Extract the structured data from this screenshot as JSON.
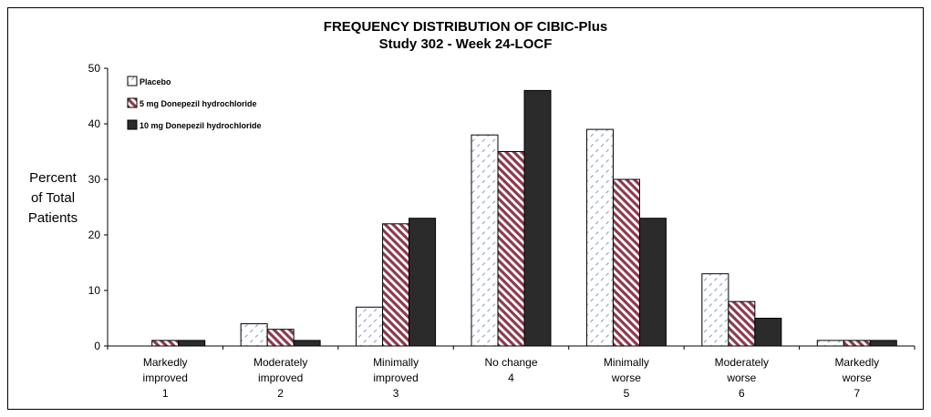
{
  "chart_data": {
    "type": "bar",
    "title": "FREQUENCY DISTRIBUTION OF CIBIC-Plus",
    "subtitle": "Study 302 - Week 24-LOCF",
    "ylabel_lines": [
      "Percent",
      "of Total",
      "Patients"
    ],
    "xlabel": "",
    "ylim": [
      0,
      50
    ],
    "yticks": [
      0,
      10,
      20,
      30,
      40,
      50
    ],
    "grid": false,
    "legend_position": "top-left",
    "categories": [
      [
        "Markedly",
        "improved",
        "1"
      ],
      [
        "Moderately",
        "improved",
        "2"
      ],
      [
        "Minimally",
        "improved",
        "3"
      ],
      [
        "No change",
        "4"
      ],
      [
        "Minimally",
        "worse",
        "5"
      ],
      [
        "Moderately",
        "worse",
        "6"
      ],
      [
        "Markedly",
        "worse",
        "7"
      ]
    ],
    "series": [
      {
        "name": "Placebo",
        "values": [
          0,
          4,
          7,
          38,
          39,
          13,
          1
        ],
        "fill": "pattern-placebo"
      },
      {
        "name": "5 mg Donepezil hydrochloride",
        "values": [
          1,
          3,
          22,
          35,
          30,
          8,
          1
        ],
        "fill": "pattern-5mg"
      },
      {
        "name": "10 mg Donepezil hydrochloride",
        "values": [
          1,
          1,
          23,
          46,
          23,
          5,
          1
        ],
        "fill": "#2b2b2b"
      }
    ]
  }
}
